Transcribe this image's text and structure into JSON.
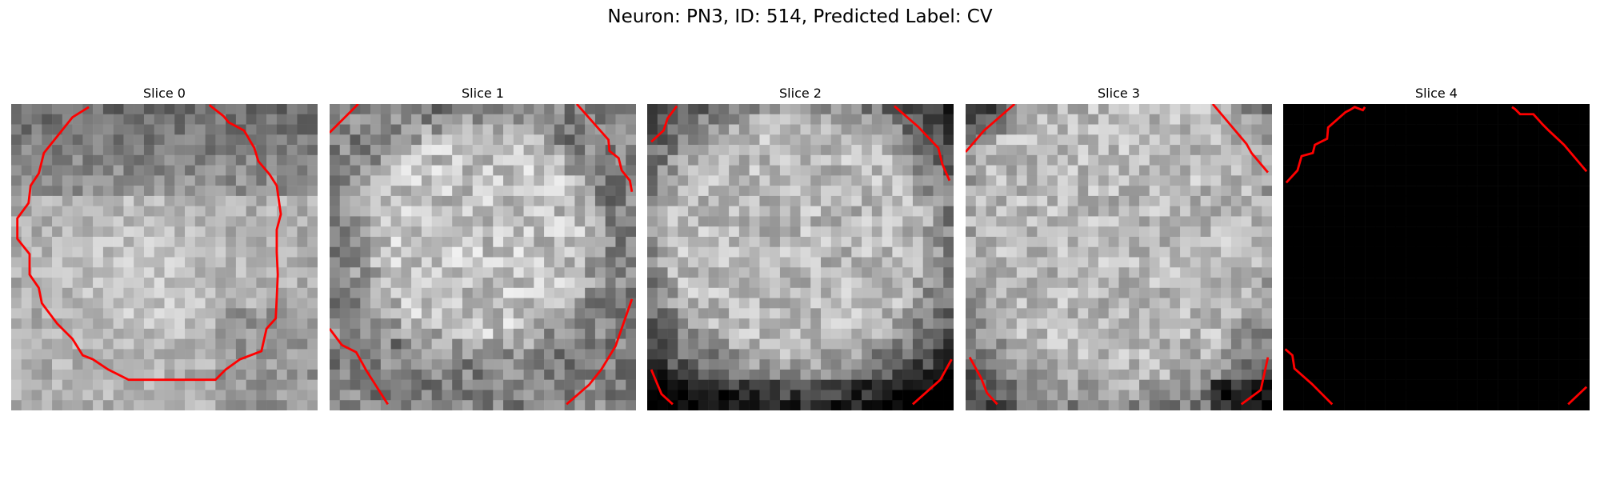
{
  "figure": {
    "title": "Neuron: PN3, ID: 514, Predicted Label: CV"
  },
  "slices": [
    {
      "label": "Slice 0"
    },
    {
      "label": "Slice 1"
    },
    {
      "label": "Slice 2"
    },
    {
      "label": "Slice 3"
    },
    {
      "label": "Slice 4"
    }
  ],
  "colors": {
    "contour": "#ff0000",
    "background": "#ffffff"
  }
}
